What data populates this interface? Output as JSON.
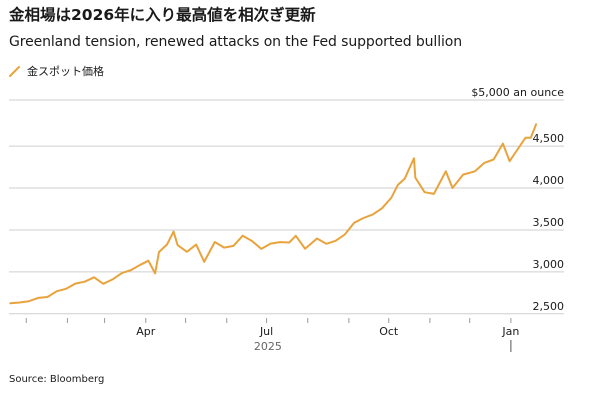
{
  "title": "金相場は2026年に入り最高値を相次ぎ更新",
  "subtitle": "Greenland tension, renewed attacks on the Fed supported bullion",
  "source": "Source: Bloomberg",
  "chart_data": {
    "type": "line",
    "unit_label": "$5,000 an ounce",
    "y_ticks": [
      2500,
      3000,
      3500,
      4000,
      4500
    ],
    "y_tick_labels": [
      "2,500",
      "3,000",
      "3,500",
      "4,000",
      "4,500"
    ],
    "ylim": [
      2450,
      5050
    ],
    "x_ticks": [
      {
        "date": "2025-01-01",
        "label": ""
      },
      {
        "date": "2025-02-01",
        "label": ""
      },
      {
        "date": "2025-03-01",
        "label": ""
      },
      {
        "date": "2025-04-01",
        "label": "Apr"
      },
      {
        "date": "2025-05-01",
        "label": ""
      },
      {
        "date": "2025-06-01",
        "label": ""
      },
      {
        "date": "2025-07-01",
        "label": "Jul"
      },
      {
        "date": "2025-08-01",
        "label": ""
      },
      {
        "date": "2025-09-01",
        "label": ""
      },
      {
        "date": "2025-10-01",
        "label": "Oct"
      },
      {
        "date": "2025-11-01",
        "label": ""
      },
      {
        "date": "2025-12-01",
        "label": ""
      },
      {
        "date": "2026-01-01",
        "label": "Jan"
      }
    ],
    "year_label": "2025",
    "color": "#e8a33d",
    "grid": true,
    "series": [
      {
        "name": "金スポット価格",
        "points": [
          [
            "2024-12-20",
            2625
          ],
          [
            "2024-12-27",
            2635
          ],
          [
            "2025-01-03",
            2650
          ],
          [
            "2025-01-10",
            2690
          ],
          [
            "2025-01-17",
            2700
          ],
          [
            "2025-01-24",
            2770
          ],
          [
            "2025-01-31",
            2798
          ],
          [
            "2025-02-07",
            2860
          ],
          [
            "2025-02-14",
            2883
          ],
          [
            "2025-02-21",
            2935
          ],
          [
            "2025-02-28",
            2858
          ],
          [
            "2025-03-07",
            2910
          ],
          [
            "2025-03-14",
            2985
          ],
          [
            "2025-03-21",
            3023
          ],
          [
            "2025-03-28",
            3085
          ],
          [
            "2025-04-03",
            3133
          ],
          [
            "2025-04-08",
            2982
          ],
          [
            "2025-04-11",
            3237
          ],
          [
            "2025-04-17",
            3327
          ],
          [
            "2025-04-22",
            3480
          ],
          [
            "2025-04-25",
            3320
          ],
          [
            "2025-05-02",
            3240
          ],
          [
            "2025-05-09",
            3325
          ],
          [
            "2025-05-15",
            3120
          ],
          [
            "2025-05-23",
            3357
          ],
          [
            "2025-05-30",
            3290
          ],
          [
            "2025-06-06",
            3310
          ],
          [
            "2025-06-13",
            3432
          ],
          [
            "2025-06-20",
            3368
          ],
          [
            "2025-06-27",
            3274
          ],
          [
            "2025-07-04",
            3337
          ],
          [
            "2025-07-11",
            3355
          ],
          [
            "2025-07-18",
            3350
          ],
          [
            "2025-07-23",
            3430
          ],
          [
            "2025-07-30",
            3275
          ],
          [
            "2025-08-08",
            3398
          ],
          [
            "2025-08-15",
            3335
          ],
          [
            "2025-08-22",
            3371
          ],
          [
            "2025-08-29",
            3447
          ],
          [
            "2025-09-05",
            3586
          ],
          [
            "2025-09-12",
            3643
          ],
          [
            "2025-09-19",
            3685
          ],
          [
            "2025-09-26",
            3760
          ],
          [
            "2025-10-03",
            3886
          ],
          [
            "2025-10-08",
            4040
          ],
          [
            "2025-10-13",
            4110
          ],
          [
            "2025-10-17",
            4252
          ],
          [
            "2025-10-20",
            4355
          ],
          [
            "2025-10-21",
            4125
          ],
          [
            "2025-10-28",
            3950
          ],
          [
            "2025-11-04",
            3930
          ],
          [
            "2025-11-13",
            4200
          ],
          [
            "2025-11-18",
            4000
          ],
          [
            "2025-11-26",
            4160
          ],
          [
            "2025-12-05",
            4200
          ],
          [
            "2025-12-12",
            4300
          ],
          [
            "2025-12-19",
            4340
          ],
          [
            "2025-12-26",
            4530
          ],
          [
            "2025-12-31",
            4320
          ],
          [
            "2026-01-06",
            4460
          ],
          [
            "2026-01-12",
            4600
          ],
          [
            "2026-01-16",
            4600
          ],
          [
            "2026-01-20",
            4760
          ]
        ]
      }
    ]
  }
}
